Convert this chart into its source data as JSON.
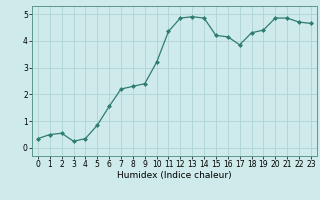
{
  "x": [
    0,
    1,
    2,
    3,
    4,
    5,
    6,
    7,
    8,
    9,
    10,
    11,
    12,
    13,
    14,
    15,
    16,
    17,
    18,
    19,
    20,
    21,
    22,
    23
  ],
  "y": [
    0.35,
    0.5,
    0.55,
    0.25,
    0.35,
    0.85,
    1.55,
    2.2,
    2.3,
    2.4,
    3.2,
    4.35,
    4.85,
    4.9,
    4.85,
    4.2,
    4.15,
    3.85,
    4.3,
    4.4,
    4.85,
    4.85,
    4.7,
    4.65
  ],
  "line_color": "#2e7d6e",
  "marker": "D",
  "marker_size": 2,
  "xlabel": "Humidex (Indice chaleur)",
  "ylim": [
    -0.3,
    5.3
  ],
  "xlim": [
    -0.5,
    23.5
  ],
  "yticks": [
    0,
    1,
    2,
    3,
    4,
    5
  ],
  "xticks": [
    0,
    1,
    2,
    3,
    4,
    5,
    6,
    7,
    8,
    9,
    10,
    11,
    12,
    13,
    14,
    15,
    16,
    17,
    18,
    19,
    20,
    21,
    22,
    23
  ],
  "bg_color": "#ceeaea",
  "grid_color": "#aed4d4",
  "tick_fontsize": 5.5,
  "xlabel_fontsize": 6.5,
  "spine_color": "#5a9a8a"
}
